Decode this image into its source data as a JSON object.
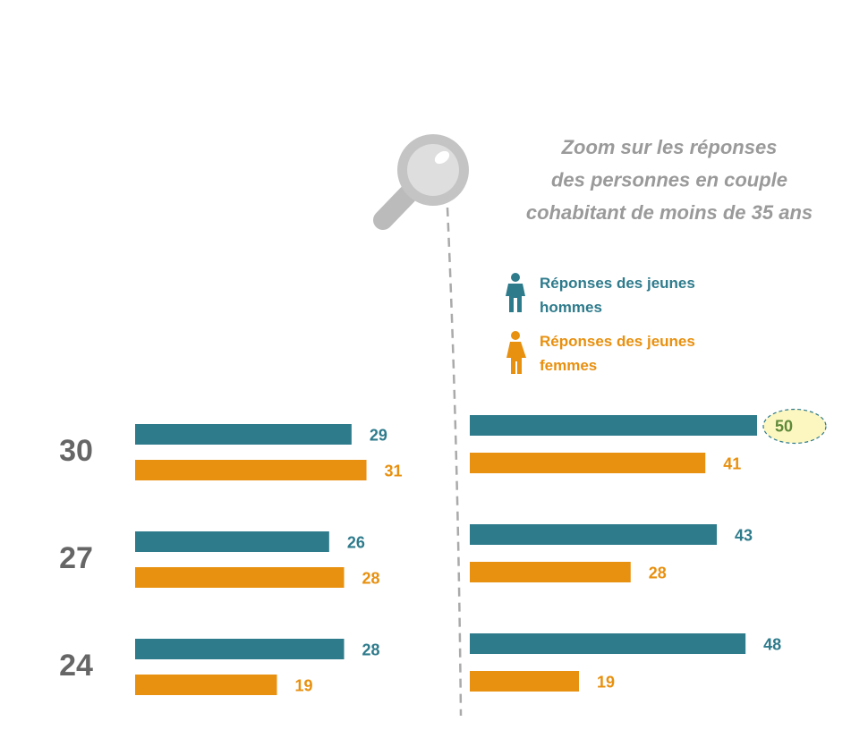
{
  "chart_data": [
    {
      "type": "bar",
      "orientation": "horizontal",
      "totals": [
        30,
        27,
        24
      ],
      "xlim": [
        0,
        50
      ],
      "series": [
        {
          "color": "#2e7b8c",
          "values": [
            29,
            26,
            28
          ]
        },
        {
          "color": "#e8900f",
          "values": [
            31,
            28,
            19
          ]
        }
      ]
    },
    {
      "type": "bar",
      "orientation": "horizontal",
      "annotation_lines": [
        "Zoom sur les réponses",
        "des personnes en couple",
        "cohabitant de moins de 35 ans"
      ],
      "xlim": [
        0,
        50
      ],
      "highlight": "chart_data.1.series.0.values.0",
      "series": [
        {
          "name": "Réponses des jeunes hommes",
          "color": "#2e7b8c",
          "values": [
            50,
            43,
            48
          ]
        },
        {
          "name": "Réponses des jeunes femmes",
          "color": "#e8900f",
          "values": [
            41,
            28,
            19
          ]
        }
      ]
    }
  ]
}
